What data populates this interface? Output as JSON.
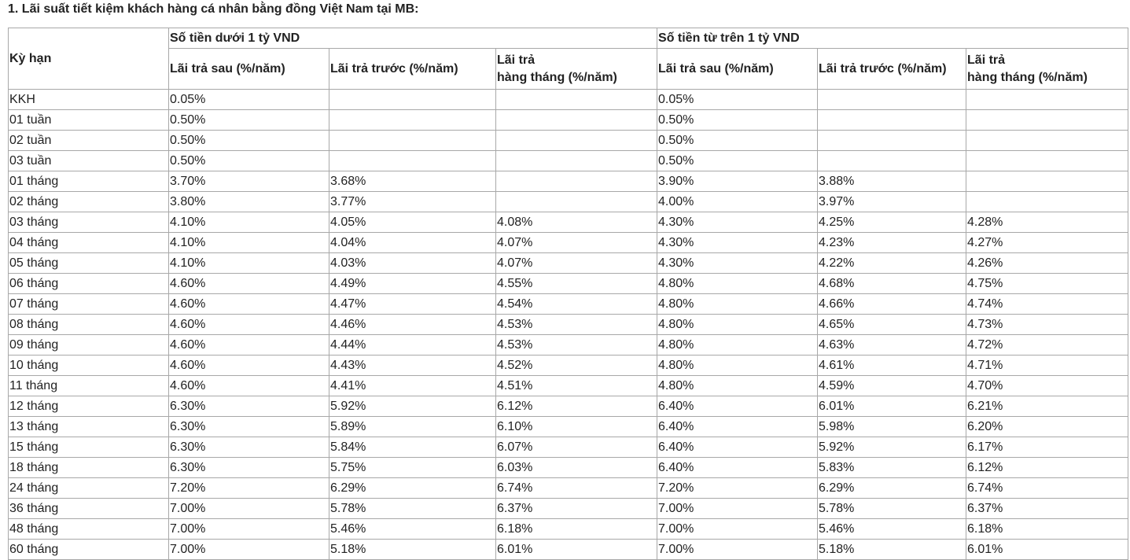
{
  "title": "1. Lãi suất tiết kiệm khách hàng cá nhân bằng đồng Việt Nam tại MB:",
  "table": {
    "header": {
      "term": "Kỳ hạn",
      "groups": [
        "Số tiền dưới 1 tỷ VND",
        "Số tiền từ trên 1 tỷ VND"
      ],
      "columns": [
        "Lãi trả sau (%/năm)",
        "Lãi trả trước (%/năm)",
        "Lãi trả\nhàng tháng (%/năm)",
        "Lãi trả sau (%/năm)",
        "Lãi trả trước (%/năm)",
        "Lãi trả\nhàng tháng (%/năm)"
      ]
    },
    "rows": [
      [
        "KKH",
        "0.05%",
        null,
        null,
        "0.05%",
        null,
        null
      ],
      [
        "01 tuần",
        "0.50%",
        null,
        null,
        "0.50%",
        null,
        null
      ],
      [
        "02 tuần",
        "0.50%",
        null,
        null,
        "0.50%",
        null,
        null
      ],
      [
        "03 tuần",
        "0.50%",
        null,
        null,
        "0.50%",
        null,
        null
      ],
      [
        "01 tháng",
        "3.70%",
        "3.68%",
        null,
        "3.90%",
        "3.88%",
        null
      ],
      [
        "02 tháng",
        "3.80%",
        "3.77%",
        null,
        "4.00%",
        "3.97%",
        null
      ],
      [
        "03 tháng",
        "4.10%",
        "4.05%",
        "4.08%",
        "4.30%",
        "4.25%",
        "4.28%"
      ],
      [
        "04 tháng",
        "4.10%",
        "4.04%",
        "4.07%",
        "4.30%",
        "4.23%",
        "4.27%"
      ],
      [
        "05 tháng",
        "4.10%",
        "4.03%",
        "4.07%",
        "4.30%",
        "4.22%",
        "4.26%"
      ],
      [
        "06 tháng",
        "4.60%",
        "4.49%",
        "4.55%",
        "4.80%",
        "4.68%",
        "4.75%"
      ],
      [
        "07 tháng",
        "4.60%",
        "4.47%",
        "4.54%",
        "4.80%",
        "4.66%",
        "4.74%"
      ],
      [
        "08 tháng",
        "4.60%",
        "4.46%",
        "4.53%",
        "4.80%",
        "4.65%",
        "4.73%"
      ],
      [
        "09 tháng",
        "4.60%",
        "4.44%",
        "4.53%",
        "4.80%",
        "4.63%",
        "4.72%"
      ],
      [
        "10 tháng",
        "4.60%",
        "4.43%",
        "4.52%",
        "4.80%",
        "4.61%",
        "4.71%"
      ],
      [
        "11 tháng",
        "4.60%",
        "4.41%",
        "4.51%",
        "4.80%",
        "4.59%",
        "4.70%"
      ],
      [
        "12 tháng",
        "6.30%",
        "5.92%",
        "6.12%",
        "6.40%",
        "6.01%",
        "6.21%"
      ],
      [
        "13 tháng",
        "6.30%",
        "5.89%",
        "6.10%",
        "6.40%",
        "5.98%",
        "6.20%"
      ],
      [
        "15 tháng",
        "6.30%",
        "5.84%",
        "6.07%",
        "6.40%",
        "5.92%",
        "6.17%"
      ],
      [
        "18 tháng",
        "6.30%",
        "5.75%",
        "6.03%",
        "6.40%",
        "5.83%",
        "6.12%"
      ],
      [
        "24 tháng",
        "7.20%",
        "6.29%",
        "6.74%",
        "7.20%",
        "6.29%",
        "6.74%"
      ],
      [
        "36 tháng",
        "7.00%",
        "5.78%",
        "6.37%",
        "7.00%",
        "5.78%",
        "6.37%"
      ],
      [
        "48 tháng",
        "7.00%",
        "5.46%",
        "6.18%",
        "7.00%",
        "5.46%",
        "6.18%"
      ],
      [
        "60 tháng",
        "7.00%",
        "5.18%",
        "6.01%",
        "7.00%",
        "5.18%",
        "6.01%"
      ]
    ]
  }
}
